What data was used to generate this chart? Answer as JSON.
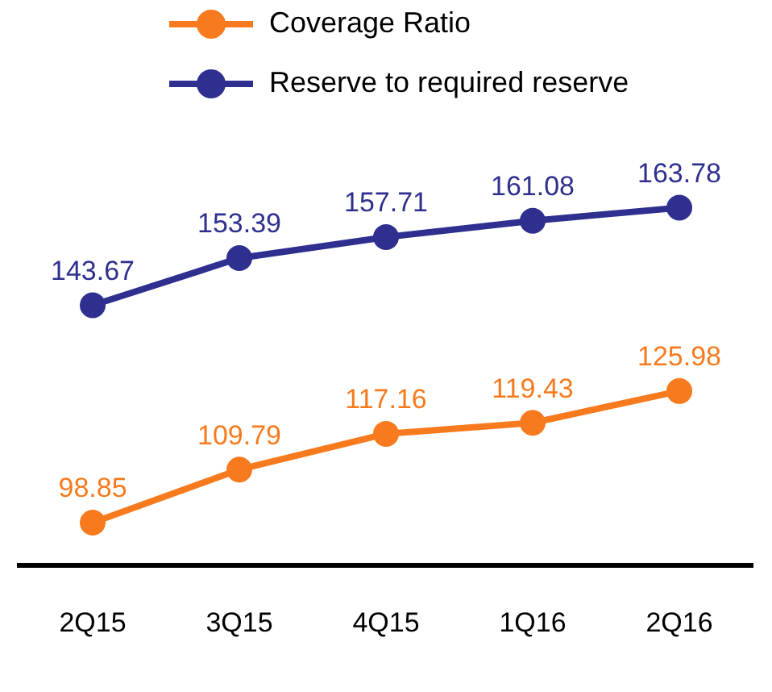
{
  "chart_data": {
    "type": "line",
    "categories": [
      "2Q15",
      "3Q15",
      "4Q15",
      "1Q16",
      "2Q16"
    ],
    "series": [
      {
        "name": "Coverage Ratio",
        "color": "#f77b1e",
        "values": [
          98.85,
          109.79,
          117.16,
          119.43,
          125.98
        ]
      },
      {
        "name": "Reserve to required reserve",
        "color": "#2e2f8f",
        "values": [
          143.67,
          153.39,
          157.71,
          161.08,
          163.78
        ]
      }
    ],
    "data_labels": true,
    "legend": "top",
    "marker": "circle"
  }
}
